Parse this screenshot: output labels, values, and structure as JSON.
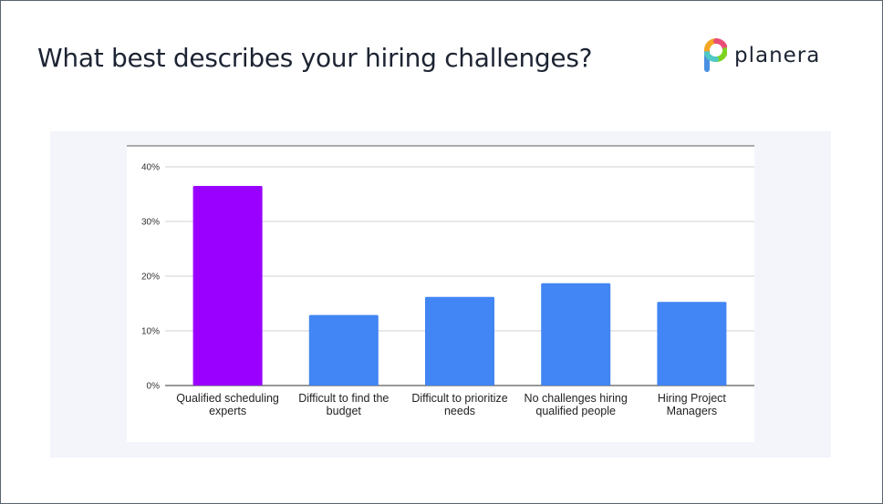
{
  "page": {
    "title": "What best describes your hiring challenges?",
    "brand": "planera"
  },
  "chart_data": {
    "type": "bar",
    "categories": [
      "Qualified scheduling experts",
      "Difficult to find the budget",
      "Difficult to prioritize needs",
      "No challenges hiring qualified people",
      "Hiring Project Managers"
    ],
    "values": [
      36.5,
      12.9,
      16.2,
      18.7,
      15.3
    ],
    "bar_colors": [
      "#9900ff",
      "#4285f4",
      "#4285f4",
      "#4285f4",
      "#4285f4"
    ],
    "yticks": [
      "0%",
      "10%",
      "20%",
      "30%",
      "40%"
    ],
    "ylim": [
      0,
      40
    ],
    "grid": true,
    "title": "",
    "xlabel": "",
    "ylabel": ""
  }
}
